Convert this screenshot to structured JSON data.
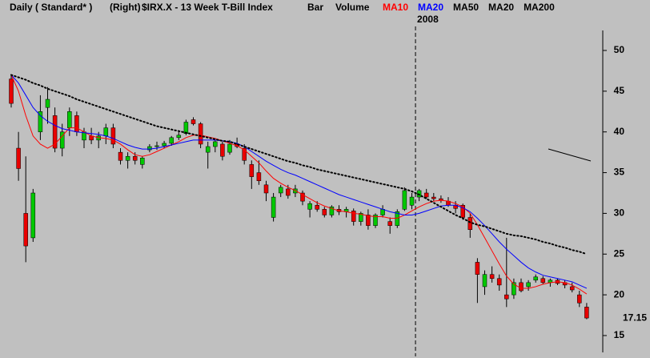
{
  "chart_data": {
    "type": "candlestick",
    "header": [
      "Daily ( Standard* )",
      "(Right)",
      "$IRX.X - 13 Week T-Bill Index",
      "Bar",
      "Volume"
    ],
    "categories": [
      null,
      null,
      null,
      null,
      null,
      null,
      null,
      null,
      null,
      null,
      null,
      null,
      null,
      null,
      null,
      null,
      null,
      null,
      null,
      null,
      null,
      null,
      null,
      null,
      null,
      null,
      null,
      null,
      null,
      null,
      null,
      null,
      null,
      null,
      null,
      null,
      null,
      null,
      null,
      null,
      null,
      null,
      null,
      null,
      null,
      null,
      null,
      null,
      null,
      null,
      null,
      null,
      null,
      null,
      null,
      null,
      "2008",
      null,
      null,
      null,
      null,
      null,
      null,
      null,
      null,
      null,
      null,
      null,
      null,
      null,
      null,
      null,
      null,
      null,
      null,
      null,
      null,
      null,
      null,
      null
    ],
    "open": [
      46.5,
      38,
      30,
      27,
      40,
      43,
      42,
      38,
      40.5,
      42,
      39,
      39.5,
      39,
      39.5,
      40.5,
      37.5,
      36.5,
      37,
      36,
      37.8,
      38.2,
      38.3,
      38.6,
      39.3,
      39.8,
      41.5,
      41,
      37.5,
      38.2,
      38.5,
      37.5,
      38.5,
      38,
      36,
      35,
      33.5,
      29.5,
      32.5,
      33,
      32.5,
      32.5,
      30.5,
      31,
      30.5,
      29.8,
      30.5,
      30.2,
      30.3,
      29,
      29.8,
      28.5,
      29.8,
      29,
      28.5,
      30.5,
      31,
      32,
      32.5,
      32,
      31.8,
      31.5,
      31,
      31,
      29.5,
      24,
      21,
      22.5,
      22,
      20,
      20,
      21.5,
      21,
      21.8,
      22,
      21.5,
      21.8,
      21.5,
      21,
      20,
      18.5
    ],
    "high": [
      47,
      40,
      37,
      33,
      44.5,
      45.5,
      43,
      41,
      43,
      42.5,
      40.5,
      40.5,
      40,
      41,
      41,
      38,
      37.5,
      37.5,
      37,
      38.5,
      38.8,
      38.9,
      39.5,
      40,
      41.5,
      41.8,
      41.2,
      38.8,
      39,
      38.8,
      39,
      39.3,
      38.5,
      36.5,
      36.5,
      34,
      32.5,
      33.5,
      33.5,
      33.5,
      32.8,
      31.5,
      31.5,
      30.8,
      31,
      31,
      30.8,
      30.6,
      30.2,
      30.5,
      30,
      31,
      29.5,
      30.5,
      33.2,
      32.5,
      33,
      33,
      32.5,
      32.2,
      32,
      31.5,
      31.2,
      30,
      24.5,
      23,
      23.5,
      22.5,
      27,
      22,
      22,
      21.8,
      22.5,
      22.3,
      22,
      22,
      21.8,
      21.5,
      20.5,
      19
    ],
    "low": [
      43,
      34,
      24,
      26.5,
      39,
      41,
      37.5,
      37,
      39.5,
      39.5,
      38,
      38.5,
      38,
      38.5,
      38,
      36,
      35.5,
      36,
      35.5,
      37.5,
      37.8,
      38,
      38.3,
      39,
      39.6,
      40.8,
      38,
      35.5,
      37.5,
      36.5,
      37.2,
      38,
      36,
      33,
      33.5,
      31.5,
      29,
      32,
      31.8,
      32,
      31,
      29.5,
      30.2,
      29.5,
      29.5,
      29.8,
      29.5,
      28.5,
      28.5,
      28,
      28.2,
      29.5,
      27.5,
      28.2,
      30.3,
      30.5,
      31.5,
      31.8,
      31.5,
      31.3,
      30.8,
      30,
      29.2,
      27,
      19,
      20,
      21.5,
      20.5,
      18.5,
      19.5,
      20.3,
      20.5,
      21.5,
      21.3,
      21,
      21.2,
      20.8,
      20.3,
      18.5,
      17
    ],
    "close": [
      43.5,
      35.5,
      26,
      32.5,
      42.5,
      44,
      38,
      40,
      42.5,
      40,
      40,
      39,
      39.5,
      40.5,
      38.5,
      36.5,
      37,
      36.5,
      36.8,
      38.2,
      38.3,
      38.6,
      39.3,
      39.6,
      41.2,
      41,
      38.5,
      38.2,
      38.8,
      37,
      38.5,
      38.2,
      36.5,
      34.5,
      34,
      32.5,
      32,
      33.2,
      32.2,
      33,
      31.5,
      31.2,
      30.5,
      29.8,
      30.8,
      30.2,
      30.5,
      29,
      30,
      28.5,
      29.8,
      30.5,
      28.5,
      30.2,
      32.8,
      32,
      32.8,
      32,
      31.8,
      31.6,
      31,
      30.6,
      29.5,
      28,
      22.5,
      22.5,
      22,
      21.2,
      19.5,
      21.5,
      20.5,
      21.5,
      22.2,
      21.5,
      21.8,
      21.4,
      21.2,
      20.6,
      19,
      17.15
    ],
    "up_color": "#00c800",
    "down_color": "#e80000",
    "series": [
      {
        "name": "MA10",
        "color": "#ff0000",
        "style": "solid",
        "values": [
          47,
          45,
          42,
          39.5,
          38.5,
          38,
          38.5,
          39.5,
          40.5,
          40.5,
          40,
          39.5,
          39.3,
          39.2,
          39,
          38.5,
          37.8,
          37.2,
          37,
          37.2,
          37.6,
          38,
          38.4,
          38.8,
          39.3,
          39.6,
          39.6,
          39.4,
          39.2,
          38.9,
          38.6,
          38.3,
          37.8,
          37,
          36.2,
          35.2,
          34.3,
          33.7,
          33.2,
          32.8,
          32.3,
          31.8,
          31.3,
          30.9,
          30.6,
          30.3,
          30.2,
          30,
          29.9,
          29.7,
          29.6,
          29.6,
          29.4,
          29.4,
          29.8,
          30.3,
          30.8,
          31.2,
          31.5,
          31.6,
          31.5,
          31.2,
          30.8,
          30,
          28.6,
          27,
          25.4,
          23.8,
          22.3,
          21.3,
          20.8,
          20.8,
          21,
          21.3,
          21.5,
          21.6,
          21.5,
          21.2,
          20.7,
          20.1
        ]
      },
      {
        "name": "MA20",
        "color": "#0000ff",
        "style": "solid",
        "values": [
          47,
          46,
          44.5,
          43,
          42,
          41.3,
          40.8,
          40.4,
          40.2,
          40,
          39.9,
          39.8,
          39.7,
          39.5,
          39.2,
          38.8,
          38.4,
          38.1,
          37.9,
          37.9,
          38,
          38.2,
          38.4,
          38.6,
          38.8,
          39,
          39,
          39,
          39,
          38.9,
          38.8,
          38.6,
          38.2,
          37.6,
          37,
          36.4,
          35.9,
          35.4,
          35,
          34.7,
          34.3,
          33.9,
          33.5,
          33.1,
          32.7,
          32.3,
          32,
          31.7,
          31.4,
          31.1,
          30.8,
          30.5,
          30.2,
          30,
          29.8,
          29.8,
          30,
          30.3,
          30.6,
          30.9,
          31,
          31,
          30.7,
          30.2,
          29.4,
          28.5,
          27.5,
          26.5,
          25.6,
          24.8,
          24,
          23.3,
          22.8,
          22.4,
          22.2,
          22,
          21.8,
          21.6,
          21.2,
          20.8
        ]
      },
      {
        "name": "MA50",
        "color": "#000000",
        "style": "dotted",
        "values": [
          47,
          46.7,
          46.4,
          46,
          45.7,
          45.3,
          45,
          44.7,
          44.4,
          44,
          43.7,
          43.4,
          43.1,
          42.8,
          42.5,
          42.2,
          41.9,
          41.6,
          41.3,
          41,
          40.7,
          40.5,
          40.3,
          40.1,
          39.9,
          39.7,
          39.5,
          39.3,
          39.1,
          38.9,
          38.8,
          38.5,
          38.2,
          37.9,
          37.6,
          37.3,
          37,
          36.7,
          36.4,
          36.2,
          35.9,
          35.7,
          35.4,
          35.2,
          35,
          34.8,
          34.6,
          34.4,
          34.2,
          34,
          33.8,
          33.6,
          33.4,
          33.2,
          33,
          32.7,
          32.3,
          31.8,
          31.3,
          30.8,
          30.3,
          29.8,
          29.4,
          28.9,
          28.6,
          28.4,
          28.1,
          27.8,
          27.5,
          27.3,
          27.2,
          27,
          26.8,
          26.5,
          26.3,
          26,
          25.8,
          25.5,
          25.3,
          25
        ]
      }
    ],
    "legend_extra": [
      {
        "name": "MA20",
        "color": "#000000"
      },
      {
        "name": "MA200",
        "color": "#000000"
      }
    ],
    "ylim": [
      12.44,
      52.95
    ],
    "yticks": [
      15,
      20,
      25,
      30,
      35,
      40,
      45,
      50
    ],
    "last_price": 17.15
  }
}
